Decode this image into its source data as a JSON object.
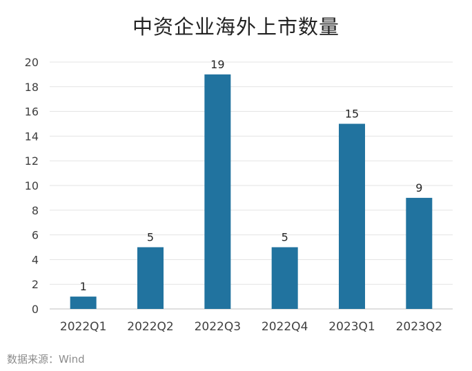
{
  "chart_data": {
    "type": "bar",
    "title": "中资企业海外上市数量",
    "categories": [
      "2022Q1",
      "2022Q2",
      "2022Q3",
      "2022Q4",
      "2023Q1",
      "2023Q2"
    ],
    "values": [
      1,
      5,
      19,
      5,
      15,
      9
    ],
    "data_labels": [
      "1",
      "5",
      "19",
      "5",
      "15",
      "9"
    ],
    "xlabel": "",
    "ylabel": "",
    "ylim": [
      0,
      20
    ],
    "yticks": [
      "0",
      "2",
      "4",
      "6",
      "8",
      "10",
      "12",
      "14",
      "16",
      "18",
      "20"
    ],
    "grid": true,
    "legend": "none",
    "bar_color": "#21739f"
  },
  "source_text": "数据来源：Wind"
}
